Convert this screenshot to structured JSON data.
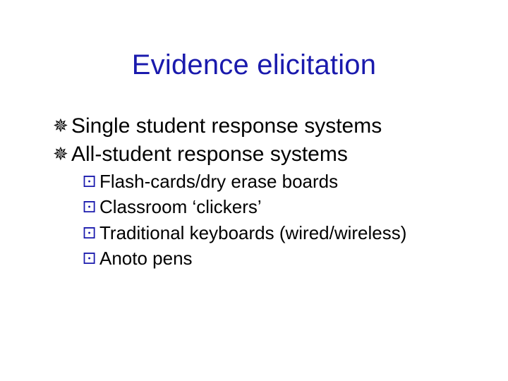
{
  "colors": {
    "title": "#1a1aad",
    "bullet1": "#000000",
    "bullet2": "#1a1aad",
    "text": "#000000",
    "background": "#ffffff"
  },
  "glyphs": {
    "level1": "✵",
    "level2": "⚀"
  },
  "title": "Evidence elicitation",
  "items": [
    {
      "text": "Single student response systems",
      "sub": []
    },
    {
      "text": "All-student response systems",
      "sub": [
        "Flash-cards/dry erase boards",
        "Classroom ‘clickers’",
        "Traditional keyboards (wired/wireless)",
        "Anoto pens"
      ]
    }
  ],
  "typography": {
    "title_fontsize": 40,
    "level1_fontsize": 30,
    "level2_fontsize": 26,
    "font_family": "Arial"
  }
}
